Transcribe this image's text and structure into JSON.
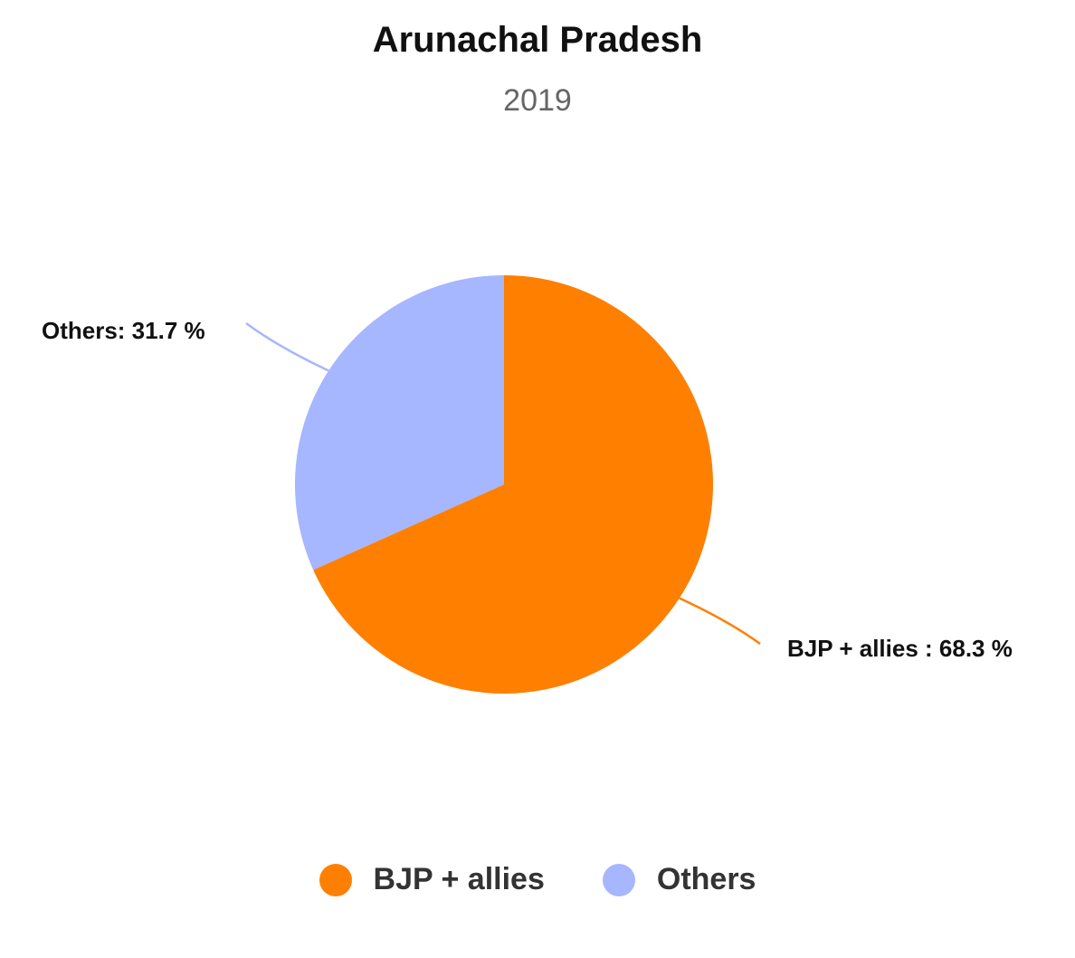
{
  "chart_data": {
    "type": "pie",
    "title": "Arunachal Pradesh",
    "subtitle": "2019",
    "slices": [
      {
        "label": "BJP + allies",
        "value": 68.3,
        "data_label": "BJP + allies : 68.3 %",
        "color": "#ff7f00"
      },
      {
        "label": "Others",
        "value": 31.7,
        "data_label": "Others: 31.7 %",
        "color": "#a6b6ff"
      }
    ],
    "legend_position": "bottom"
  }
}
